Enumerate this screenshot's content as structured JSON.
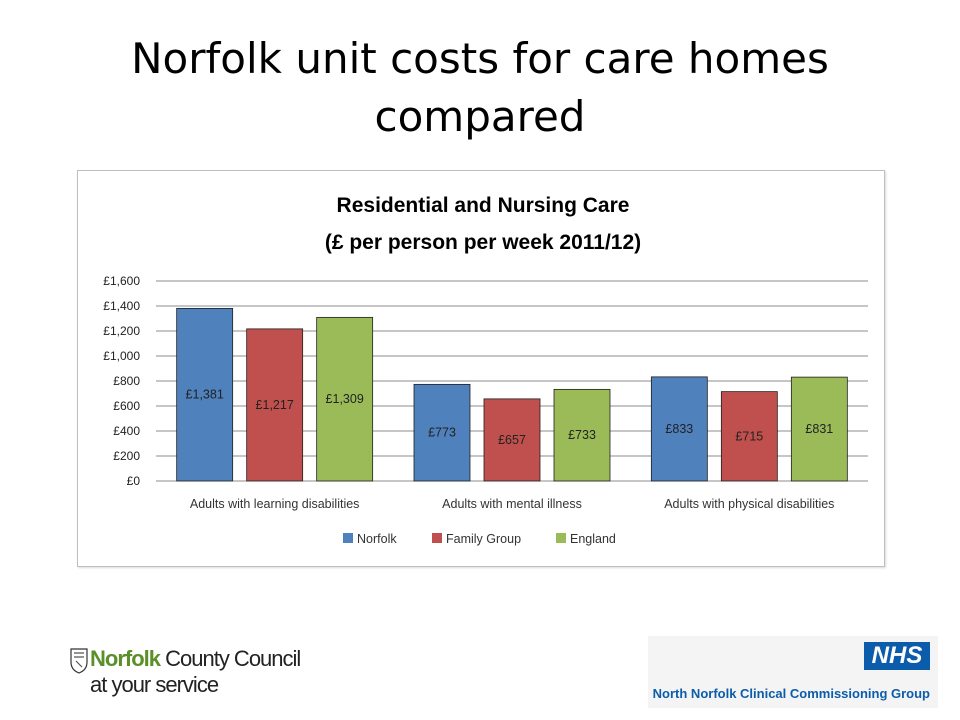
{
  "slide": {
    "title_line1": "Norfolk unit costs for care homes",
    "title_line2": "compared"
  },
  "chart_data": {
    "type": "bar",
    "title_line1": "Residential and Nursing Care",
    "title_line2": "(£ per person per week 2011/12)",
    "categories": [
      "Adults with learning disabilities",
      "Adults with mental illness",
      "Adults with physical disabilities"
    ],
    "series": [
      {
        "name": "Norfolk",
        "color": "#4f81bd",
        "values": [
          1381,
          773,
          833
        ],
        "labels": [
          "£1,381",
          "£773",
          "£833"
        ]
      },
      {
        "name": "Family Group",
        "color": "#c0504d",
        "values": [
          1217,
          657,
          715
        ],
        "labels": [
          "£1,217",
          "£657",
          "£715"
        ]
      },
      {
        "name": "England",
        "color": "#9bbb59",
        "values": [
          1309,
          733,
          831
        ],
        "labels": [
          "£1,309",
          "£733",
          "£831"
        ]
      }
    ],
    "yticks": [
      "£0",
      "£200",
      "£400",
      "£600",
      "£800",
      "£1,000",
      "£1,200",
      "£1,400",
      "£1,600"
    ],
    "ylim": [
      0,
      1600
    ],
    "grid": true,
    "legend_position": "bottom"
  },
  "footer": {
    "council_name_bold": "Norfolk",
    "council_name_rest": " County Council",
    "council_tagline": "at your service",
    "nhs_badge": "NHS",
    "nhs_org": "North Norfolk Clinical Commissioning Group"
  }
}
